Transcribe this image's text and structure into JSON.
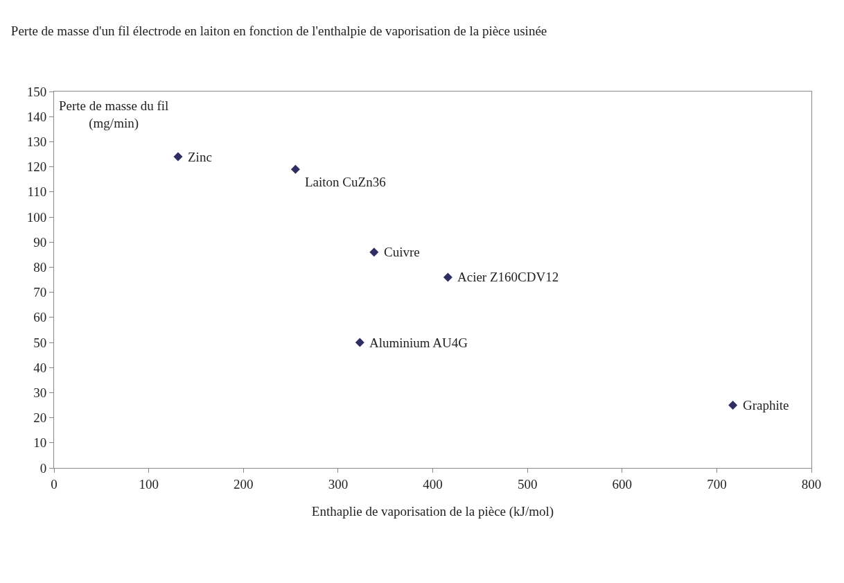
{
  "chart_data": {
    "type": "scatter",
    "title": "Perte de masse d'un fil électrode en laiton en fonction de l'enthalpie de vaporisation de la pièce usinée",
    "xlabel": "Enthaplie de vaporisation de la pièce (kJ/mol)",
    "ylabel": "Perte de masse du fil\n(mg/min)",
    "x": [
      131,
      255,
      338,
      416,
      323,
      717
    ],
    "series": [
      {
        "color": "#2e2e62",
        "values": [
          124,
          119,
          86,
          76,
          50,
          25
        ]
      }
    ],
    "annotations": [
      {
        "text": "Zinc",
        "x": 131,
        "y": 124
      },
      {
        "text": "Laiton CuZn36",
        "x": 255,
        "y": 119
      },
      {
        "text": "Cuivre",
        "x": 338,
        "y": 86
      },
      {
        "text": "Acier Z160CDV12",
        "x": 416,
        "y": 76
      },
      {
        "text": "Aluminium AU4G",
        "x": 323,
        "y": 50
      },
      {
        "text": "Graphite",
        "x": 717,
        "y": 25
      }
    ],
    "xlim": [
      0,
      800
    ],
    "xticks": [
      0,
      100,
      200,
      300,
      400,
      500,
      600,
      700,
      800
    ],
    "ylim": [
      0,
      150
    ],
    "yticks": [
      0,
      10,
      20,
      30,
      40,
      50,
      60,
      70,
      80,
      90,
      100,
      110,
      120,
      130,
      140,
      150
    ],
    "grid": false,
    "marker": "diamond"
  }
}
